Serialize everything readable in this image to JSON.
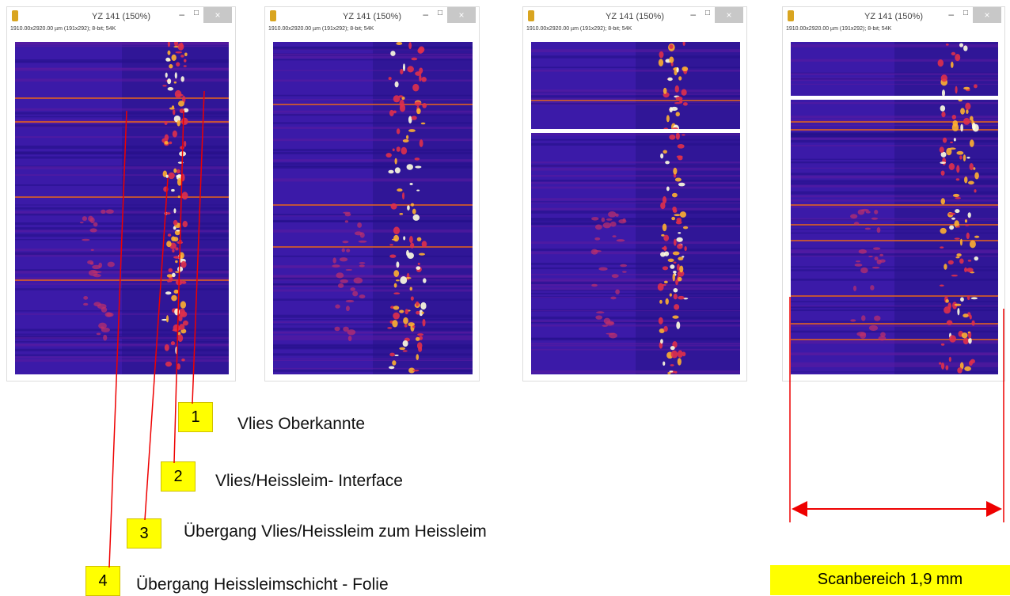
{
  "windows": [
    {
      "title": "YZ 141 (150%)",
      "info": "1910.00x2920.00 µm (191x292); 8-bit; 54K"
    },
    {
      "title": "YZ 141 (150%)",
      "info": "1910.00x2920.00 µm (191x292); 8-bit; 54K"
    },
    {
      "title": "YZ 141 (150%)",
      "info": "1910.00x2920.00 µm (191x292); 8-bit; 54K"
    },
    {
      "title": "YZ 141 (150%)",
      "info": "1910.00x2920.00 µm (191x292); 8-bit; 54K"
    }
  ],
  "labels": [
    {
      "number": "1",
      "text": "Vlies Oberkannte"
    },
    {
      "number": "2",
      "text": "Vlies/Heissleim- Interface"
    },
    {
      "number": "3",
      "text": "Übergang Vlies/Heissleim zum Heissleim"
    },
    {
      "number": "4",
      "text": "Übergang Heissleimschicht - Folie"
    }
  ],
  "scale": {
    "label": "Scanbereich 1,9 mm"
  }
}
